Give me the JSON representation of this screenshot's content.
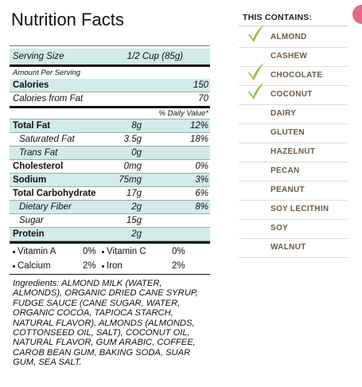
{
  "nutrition": {
    "title": "Nutrition Facts",
    "serving": [
      "Serving Size",
      "1/2 Cup (85g)"
    ],
    "amount_per_serving": "Amount Per Serving",
    "calories": [
      "Calories",
      "150"
    ],
    "calories_from_fat": [
      "Calories from Fat",
      "70"
    ],
    "daily_value_header": "% Daily Value*",
    "nutrients": [
      [
        "Total Fat",
        "8g",
        "12%"
      ],
      [
        "Saturated Fat",
        "3.5g",
        "18%"
      ],
      [
        "Trans Fat",
        "0g"
      ],
      [
        "Cholesterol",
        "0mg",
        "0%"
      ],
      [
        "Sodium",
        "75mg",
        "3%"
      ],
      [
        "Total Carbohydrate",
        "17g",
        "6%"
      ],
      [
        "Dietary Fiber",
        "2g",
        "8%"
      ],
      [
        "Sugar",
        "15g"
      ],
      [
        "Protein",
        "2g"
      ]
    ],
    "vitamins": [
      [
        "Vitamin A",
        "0%"
      ],
      [
        "Vitamin C",
        "0%"
      ],
      [
        "Calcium",
        "2%"
      ],
      [
        "Iron",
        "2%"
      ]
    ],
    "ingredients": "Ingredients: ALMOND MILK (WATER, ALMONDS), ORGANIC DRIED CANE SYRUP, FUDGE SAUCE (CANE SUGAR, WATER, ORGANIC COCOA, TAPIOCA STARCH, NATURAL FLAVOR), ALMONDS (ALMONDS, COTTONSEED OIL, SALT), COCONUT OIL, NATURAL FLAVOR, GUM ARABIC, COFFEE, CAROB BEAN GUM, BAKING SODA, SUAR GUM, SEA SALT."
  },
  "contains": {
    "title": "THIS CONTAINS:",
    "items": [
      {
        "label": "ALMOND",
        "checked": true
      },
      {
        "label": "CASHEW",
        "checked": false
      },
      {
        "label": "CHOCOLATE",
        "checked": true
      },
      {
        "label": "COCONUT",
        "checked": true
      },
      {
        "label": "DAIRY",
        "checked": false
      },
      {
        "label": "GLUTEN",
        "checked": false
      },
      {
        "label": "HAZELNUT",
        "checked": false
      },
      {
        "label": "PECAN",
        "checked": false
      },
      {
        "label": "PEANUT",
        "checked": false
      },
      {
        "label": "SOY LECITHIN",
        "checked": false
      },
      {
        "label": "SOY",
        "checked": false
      },
      {
        "label": "WALNUT",
        "checked": false
      }
    ]
  }
}
